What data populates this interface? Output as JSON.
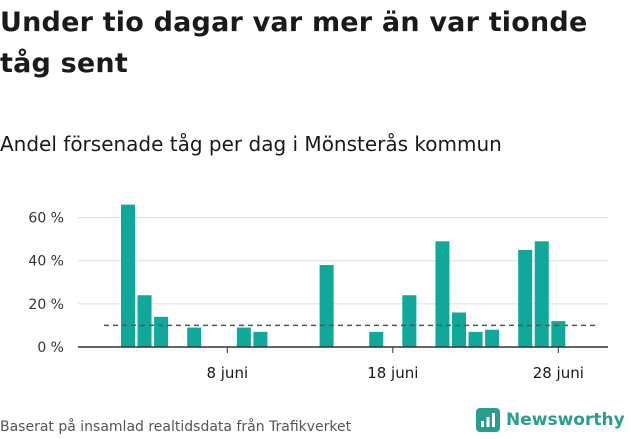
{
  "header": {
    "title": "Under tio dagar var mer än var tionde tåg sent",
    "subtitle": "Andel försenade tåg per dag i Mönsterås kommun"
  },
  "footer": {
    "source": "Baserat på insamlad realtidsdata från Trafikverket",
    "brand": "Newsworthy"
  },
  "colors": {
    "bar": "#0fa89a",
    "reference_line": "#555555",
    "grid": "#dddddd",
    "axis": "#333333",
    "brand": "#2a9d8f"
  },
  "chart_data": {
    "type": "bar",
    "x": [
      "2 juni",
      "3 juni",
      "4 juni",
      "5 juni",
      "6 juni",
      "7 juni",
      "8 juni",
      "9 juni",
      "10 juni",
      "11 juni",
      "12 juni",
      "13 juni",
      "14 juni",
      "15 juni",
      "16 juni",
      "17 juni",
      "18 juni",
      "19 juni",
      "20 juni",
      "21 juni",
      "22 juni",
      "23 juni",
      "24 juni",
      "25 juni",
      "26 juni",
      "27 juni",
      "28 juni",
      "29 juni"
    ],
    "values": [
      66,
      24,
      14,
      0,
      9,
      0,
      0,
      9,
      7,
      0,
      0,
      0,
      38,
      0,
      0,
      7,
      0,
      24,
      0,
      49,
      16,
      7,
      8,
      0,
      45,
      49,
      12,
      null
    ],
    "reference_value": 10,
    "yticks": [
      0,
      20,
      40,
      60
    ],
    "ytick_labels": [
      "0 %",
      "20 %",
      "40 %",
      "60 %"
    ],
    "xticks": [
      "8 juni",
      "18 juni",
      "28 juni"
    ],
    "ylim": [
      0,
      70
    ],
    "grid": true
  }
}
